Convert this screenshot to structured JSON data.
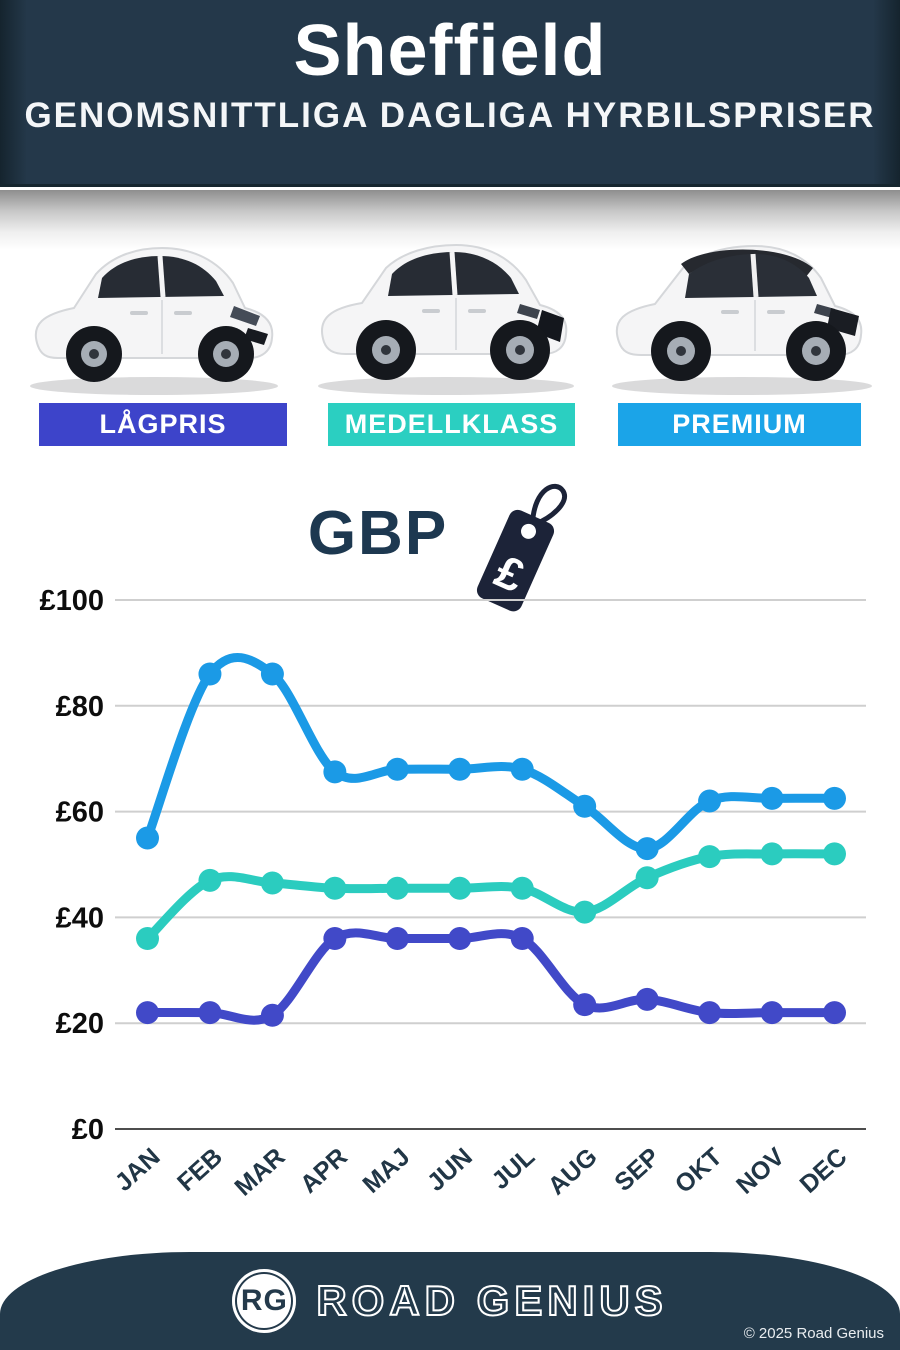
{
  "header": {
    "city": "Sheffield",
    "subtitle": "GENOMSNITTLIGA DAGLIGA HYRBILSPRISER"
  },
  "categories": [
    {
      "id": "lagpris",
      "label": "LÅGPRIS",
      "color": "#3d44ca"
    },
    {
      "id": "medellklass",
      "label": "MEDELLKLASS",
      "color": "#2bcfc1"
    },
    {
      "id": "premium",
      "label": "PREMIUM",
      "color": "#1ba4e8"
    }
  ],
  "currency": {
    "label": "GBP",
    "symbol": "£"
  },
  "chart_data": {
    "type": "line",
    "categories": [
      "JAN",
      "FEB",
      "MAR",
      "APR",
      "MAJ",
      "JUN",
      "JUL",
      "AUG",
      "SEP",
      "OKT",
      "NOV",
      "DEC"
    ],
    "series": [
      {
        "name": "PREMIUM",
        "color": "#1b9ae6",
        "values": [
          55,
          86,
          86,
          67.5,
          68,
          68,
          68,
          61,
          53,
          62,
          62.5,
          62.5
        ]
      },
      {
        "name": "MEDELLKLASS",
        "color": "#2bccbf",
        "values": [
          36,
          47,
          46.5,
          45.5,
          45.5,
          45.5,
          45.5,
          41,
          47.5,
          51.5,
          52,
          52
        ]
      },
      {
        "name": "LÅGPRIS",
        "color": "#4149c8",
        "values": [
          22,
          22,
          21.5,
          36,
          36,
          36,
          36,
          23.5,
          24.5,
          22,
          22,
          22
        ]
      }
    ],
    "yticks": [
      0,
      20,
      40,
      60,
      80,
      100
    ],
    "ylabels": [
      "£0",
      "£20",
      "£40",
      "£60",
      "£80",
      "£100"
    ],
    "ylim": [
      0,
      100
    ],
    "grid": true,
    "legend_position": "none"
  },
  "footer": {
    "logo_initials": "RG",
    "brand": "ROAD GENIUS",
    "copyright": "© 2025 Road Genius"
  }
}
